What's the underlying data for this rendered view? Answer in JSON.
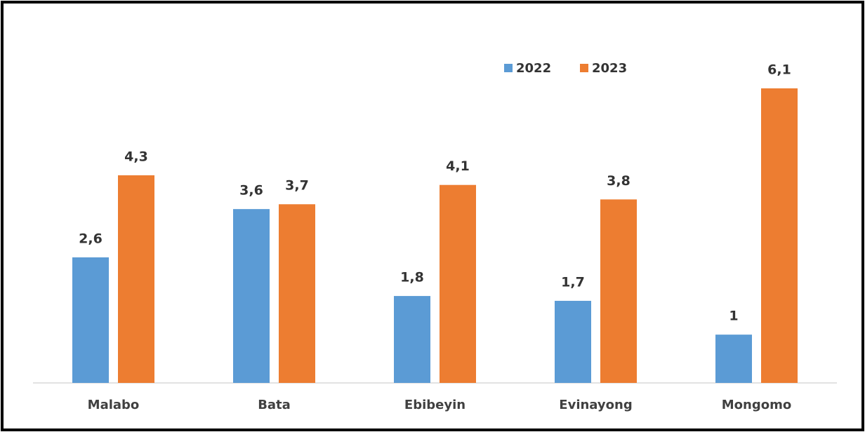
{
  "chart_data": {
    "type": "bar",
    "categories": [
      "Malabo",
      "Bata",
      "Ebibeyin",
      "Evinayong",
      "Mongomo"
    ],
    "series": [
      {
        "name": "2022",
        "color": "#5b9bd5",
        "values": [
          2.6,
          3.6,
          1.8,
          1.7,
          1
        ],
        "value_labels": [
          "2,6",
          "3,6",
          "1,8",
          "1,7",
          "1"
        ]
      },
      {
        "name": "2023",
        "color": "#ed7d31",
        "values": [
          4.3,
          3.7,
          4.1,
          3.8,
          6.1
        ],
        "value_labels": [
          "4,3",
          "3,7",
          "4,1",
          "3,8",
          "6,1"
        ]
      }
    ]
  }
}
